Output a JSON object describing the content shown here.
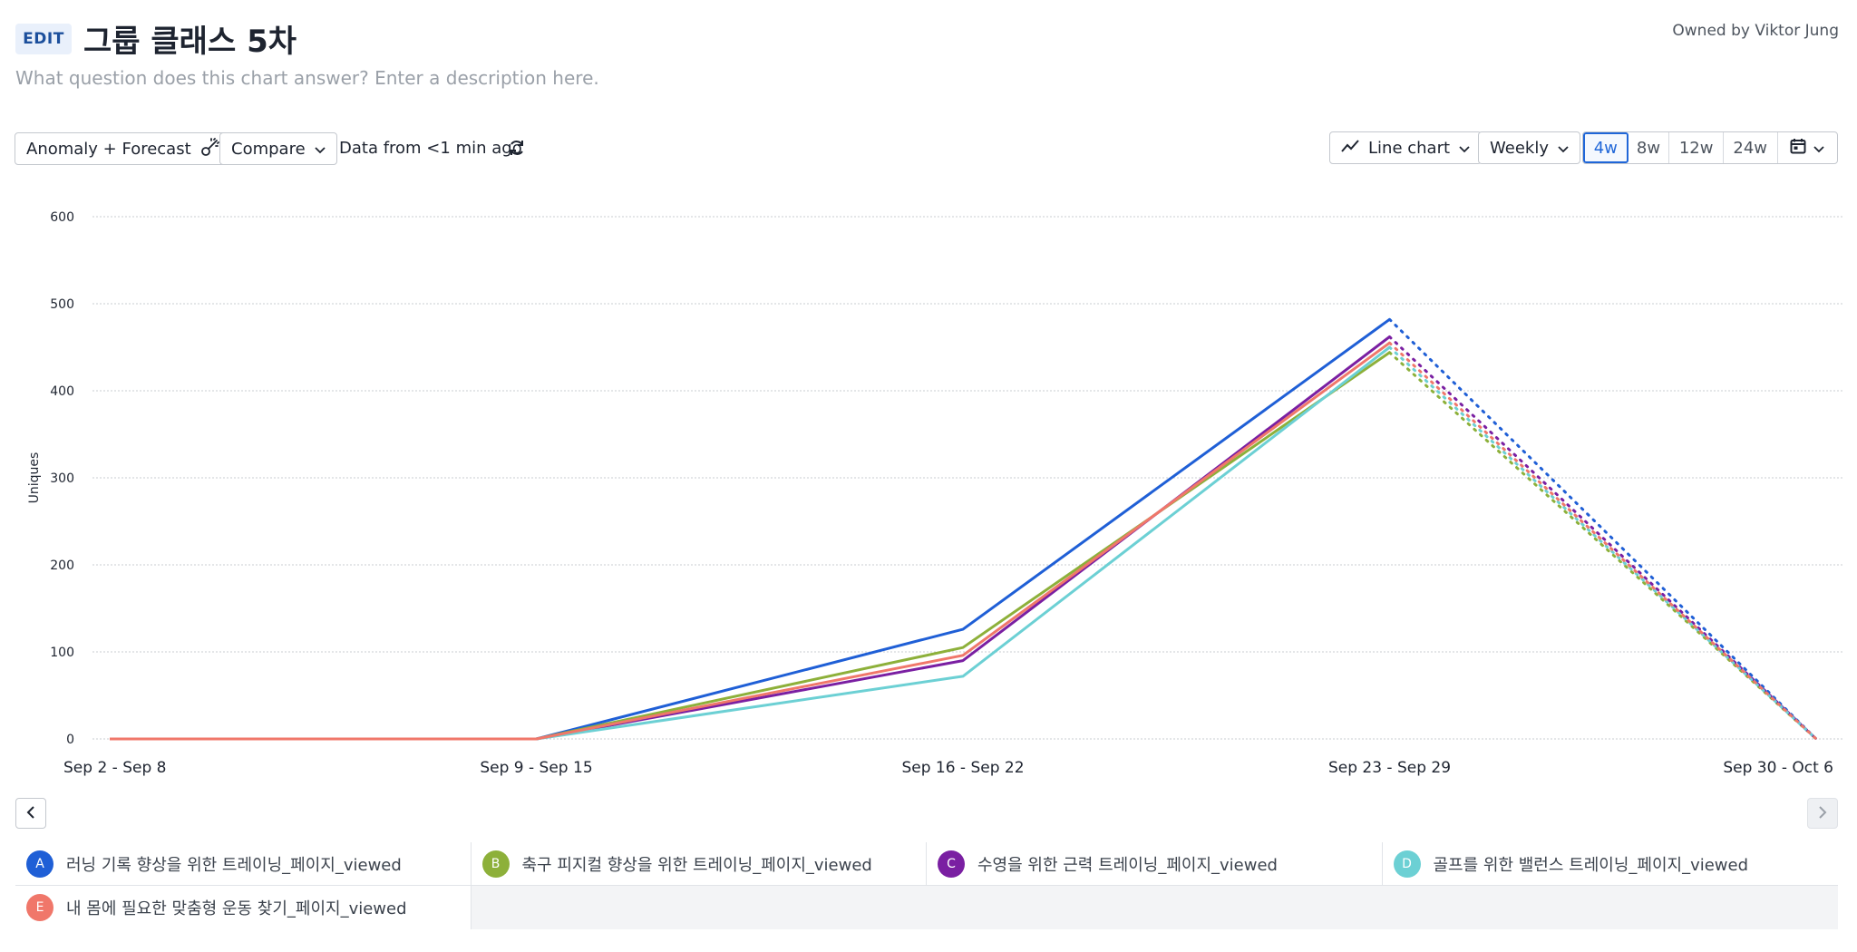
{
  "header": {
    "edit_label": "EDIT",
    "title": "그룹 클래스 5차",
    "description_placeholder": "What question does this chart answer? Enter a description here.",
    "owner": "Owned by Viktor Jung"
  },
  "toolbar": {
    "anomaly_label": "Anomaly + Forecast",
    "compare_label": "Compare",
    "data_freshness": "Data from <1 min ago",
    "chart_type_label": "Line chart",
    "interval_label": "Weekly",
    "ranges": [
      "4w",
      "8w",
      "12w",
      "24w"
    ],
    "active_range": "4w"
  },
  "colors": {
    "accent": "#1f66d8"
  },
  "chart_data": {
    "type": "line",
    "ylabel": "Uniques",
    "xlabel": "",
    "ylim": [
      0,
      600
    ],
    "yticks": [
      0,
      100,
      200,
      300,
      400,
      500,
      600
    ],
    "categories": [
      "Sep 2 - Sep 8",
      "Sep 9 - Sep 15",
      "Sep 16 - Sep 22",
      "Sep 23 - Sep 29",
      "Sep 30 - Oct 6"
    ],
    "grid": true,
    "forecast_from_index": 3,
    "series": [
      {
        "name": "러닝 기록 향상을 위한 트레이닝_페이지_viewed",
        "letter": "A",
        "color": "#1f5fd6",
        "values": [
          0,
          0,
          126,
          482,
          0
        ]
      },
      {
        "name": "축구 피지컬 향상을 위한 트레이닝_페이지_viewed",
        "letter": "B",
        "color": "#8db03a",
        "values": [
          0,
          0,
          105,
          444,
          0
        ]
      },
      {
        "name": "수영을 위한 근력 트레이닝_페이지_viewed",
        "letter": "C",
        "color": "#7a1fa2",
        "values": [
          0,
          0,
          90,
          462,
          0
        ]
      },
      {
        "name": "골프를 위한 밸런스 트레이닝_페이지_viewed",
        "letter": "D",
        "color": "#6cd0d4",
        "values": [
          0,
          0,
          72,
          450,
          0
        ]
      },
      {
        "name": "내 몸에 필요한 맞춤형 운동 찾기_페이지_viewed",
        "letter": "E",
        "color": "#f0776a",
        "values": [
          0,
          0,
          96,
          455,
          0
        ]
      }
    ]
  }
}
